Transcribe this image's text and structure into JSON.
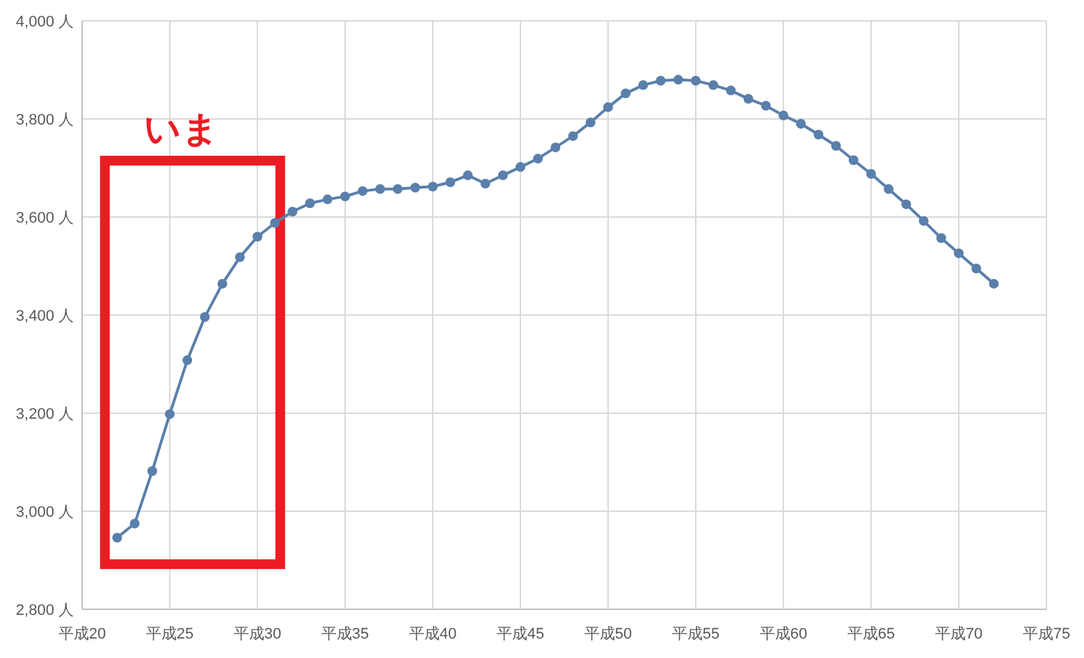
{
  "chart_data": {
    "type": "line",
    "marker": "circle",
    "grid": true,
    "categories": [
      "平成20",
      null,
      null,
      null,
      null,
      "平成25",
      null,
      null,
      null,
      null,
      "平成30",
      null,
      null,
      null,
      null,
      "平成35",
      null,
      null,
      null,
      null,
      "平成40",
      null,
      null,
      null,
      null,
      "平成45",
      null,
      null,
      null,
      null,
      "平成50",
      null,
      null,
      null,
      null,
      "平成55",
      null,
      null,
      null,
      null,
      "平成60",
      null,
      null,
      null,
      null,
      "平成65",
      null,
      null,
      null,
      null,
      "平成70",
      null,
      null,
      null,
      null,
      "平成75"
    ],
    "series": [
      {
        "color": "#5a7fab",
        "values": [
          null,
          null,
          2946,
          2975,
          3082,
          3198,
          3308,
          3396,
          3464,
          3518,
          3560,
          3588,
          3611,
          3628,
          3636,
          3642,
          3653,
          3657,
          3657,
          3660,
          3662,
          3671,
          3685,
          3668,
          3685,
          3702,
          3719,
          3742,
          3765,
          3793,
          3824,
          3852,
          3869,
          3878,
          3880,
          3878,
          3869,
          3858,
          3841,
          3827,
          3807,
          3790,
          3768,
          3745,
          3716,
          3688,
          3657,
          3626,
          3592,
          3557,
          3526,
          3495,
          3464,
          null,
          null,
          null
        ]
      }
    ],
    "ylim": [
      2800,
      4000
    ],
    "yticks": [
      {
        "value": 2800,
        "label": "2,800 人"
      },
      {
        "value": 3000,
        "label": "3,000 人"
      },
      {
        "value": 3200,
        "label": "3,200 人"
      },
      {
        "value": 3400,
        "label": "3,400 人"
      },
      {
        "value": 3600,
        "label": "3,600 人"
      },
      {
        "value": 3800,
        "label": "3,800 人"
      },
      {
        "value": 4000,
        "label": "4,000 人"
      }
    ],
    "annotations": [
      "いま"
    ]
  }
}
